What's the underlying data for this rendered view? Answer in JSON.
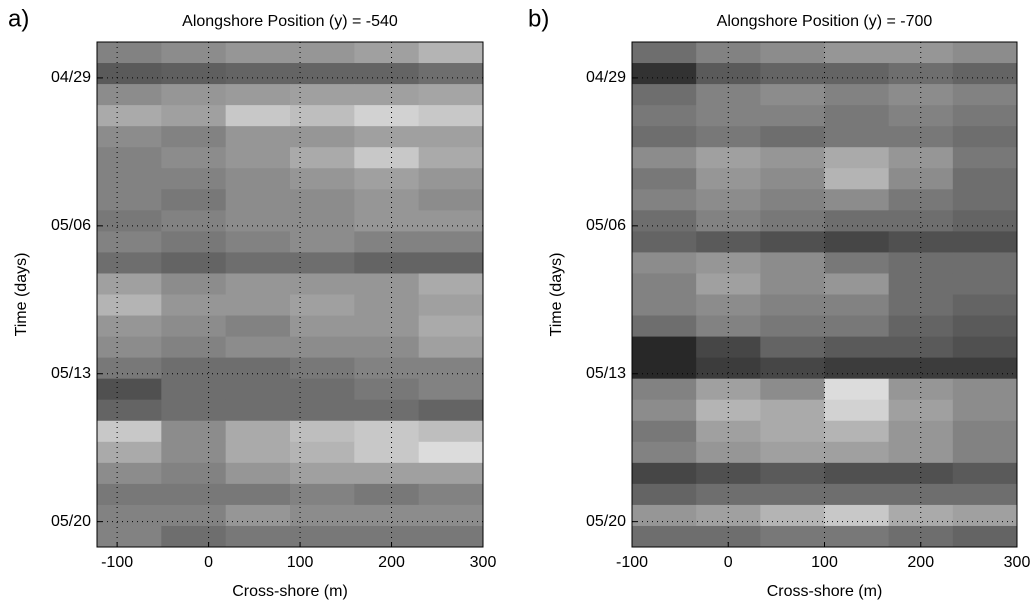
{
  "chart_data": [
    {
      "type": "heatmap",
      "panel_label": "a)",
      "title": "Alongshore Position (y) = -540",
      "xlabel": "Cross-shore (m)",
      "ylabel": "Time (days)",
      "colormap": "gray",
      "grid": true,
      "xlim": [
        -122,
        300
      ],
      "xticks": [
        -100,
        0,
        100,
        200,
        300
      ],
      "ylim": [
        117.3,
        141.2
      ],
      "yticks": [
        {
          "value": 119,
          "label": "04/29"
        },
        {
          "value": 126,
          "label": "05/06"
        },
        {
          "value": 133,
          "label": "05/13"
        },
        {
          "value": 140,
          "label": "05/20"
        }
      ],
      "z": [
        [
          130,
          140,
          150,
          150,
          160,
          180
        ],
        [
          90,
          95,
          100,
          100,
          100,
          110
        ],
        [
          140,
          150,
          155,
          160,
          160,
          165
        ],
        [
          170,
          160,
          200,
          190,
          210,
          200
        ],
        [
          140,
          130,
          150,
          150,
          160,
          160
        ],
        [
          130,
          140,
          150,
          170,
          200,
          170
        ],
        [
          130,
          130,
          140,
          150,
          160,
          150
        ],
        [
          130,
          120,
          140,
          140,
          150,
          140
        ],
        [
          120,
          130,
          140,
          140,
          150,
          150
        ],
        [
          130,
          120,
          130,
          140,
          130,
          130
        ],
        [
          110,
          100,
          110,
          110,
          100,
          100
        ],
        [
          160,
          140,
          150,
          150,
          150,
          170
        ],
        [
          180,
          150,
          150,
          160,
          150,
          160
        ],
        [
          150,
          140,
          130,
          150,
          150,
          170
        ],
        [
          140,
          130,
          140,
          140,
          140,
          160
        ],
        [
          120,
          110,
          110,
          120,
          130,
          130
        ],
        [
          80,
          110,
          110,
          110,
          120,
          130
        ],
        [
          100,
          110,
          110,
          110,
          110,
          100
        ],
        [
          200,
          140,
          170,
          190,
          200,
          190
        ],
        [
          170,
          140,
          170,
          180,
          200,
          220
        ],
        [
          140,
          130,
          150,
          160,
          160,
          160
        ],
        [
          120,
          120,
          120,
          130,
          120,
          130
        ],
        [
          130,
          130,
          150,
          140,
          140,
          140
        ],
        [
          130,
          110,
          120,
          120,
          120,
          120
        ]
      ]
    },
    {
      "type": "heatmap",
      "panel_label": "b)",
      "title": "Alongshore Position (y) = -700",
      "xlabel": "Cross-shore (m)",
      "ylabel": "Time (days)",
      "colormap": "gray",
      "grid": true,
      "xlim": [
        -100,
        300
      ],
      "xticks": [
        -100,
        0,
        100,
        200,
        300
      ],
      "ylim": [
        117.3,
        141.2
      ],
      "yticks": [
        {
          "value": 119,
          "label": "04/29"
        },
        {
          "value": 126,
          "label": "05/06"
        },
        {
          "value": 133,
          "label": "05/13"
        },
        {
          "value": 140,
          "label": "05/20"
        }
      ],
      "z": [
        [
          110,
          130,
          140,
          150,
          150,
          140
        ],
        [
          50,
          90,
          100,
          100,
          110,
          100
        ],
        [
          110,
          130,
          140,
          130,
          140,
          130
        ],
        [
          120,
          130,
          130,
          120,
          130,
          120
        ],
        [
          110,
          120,
          110,
          120,
          120,
          110
        ],
        [
          140,
          160,
          150,
          170,
          150,
          120
        ],
        [
          120,
          150,
          140,
          180,
          140,
          110
        ],
        [
          130,
          140,
          130,
          140,
          120,
          110
        ],
        [
          110,
          130,
          120,
          110,
          110,
          100
        ],
        [
          100,
          90,
          80,
          70,
          80,
          80
        ],
        [
          140,
          150,
          140,
          120,
          110,
          110
        ],
        [
          130,
          160,
          140,
          150,
          110,
          110
        ],
        [
          130,
          140,
          130,
          130,
          110,
          100
        ],
        [
          110,
          130,
          120,
          120,
          100,
          90
        ],
        [
          40,
          70,
          100,
          90,
          90,
          80
        ],
        [
          40,
          60,
          70,
          60,
          60,
          60
        ],
        [
          130,
          160,
          140,
          220,
          150,
          140
        ],
        [
          140,
          180,
          170,
          210,
          160,
          140
        ],
        [
          120,
          160,
          170,
          180,
          150,
          130
        ],
        [
          130,
          150,
          160,
          160,
          150,
          130
        ],
        [
          70,
          80,
          90,
          80,
          80,
          90
        ],
        [
          100,
          110,
          110,
          110,
          110,
          110
        ],
        [
          150,
          160,
          180,
          200,
          170,
          160
        ],
        [
          110,
          110,
          120,
          120,
          110,
          100
        ]
      ]
    }
  ]
}
